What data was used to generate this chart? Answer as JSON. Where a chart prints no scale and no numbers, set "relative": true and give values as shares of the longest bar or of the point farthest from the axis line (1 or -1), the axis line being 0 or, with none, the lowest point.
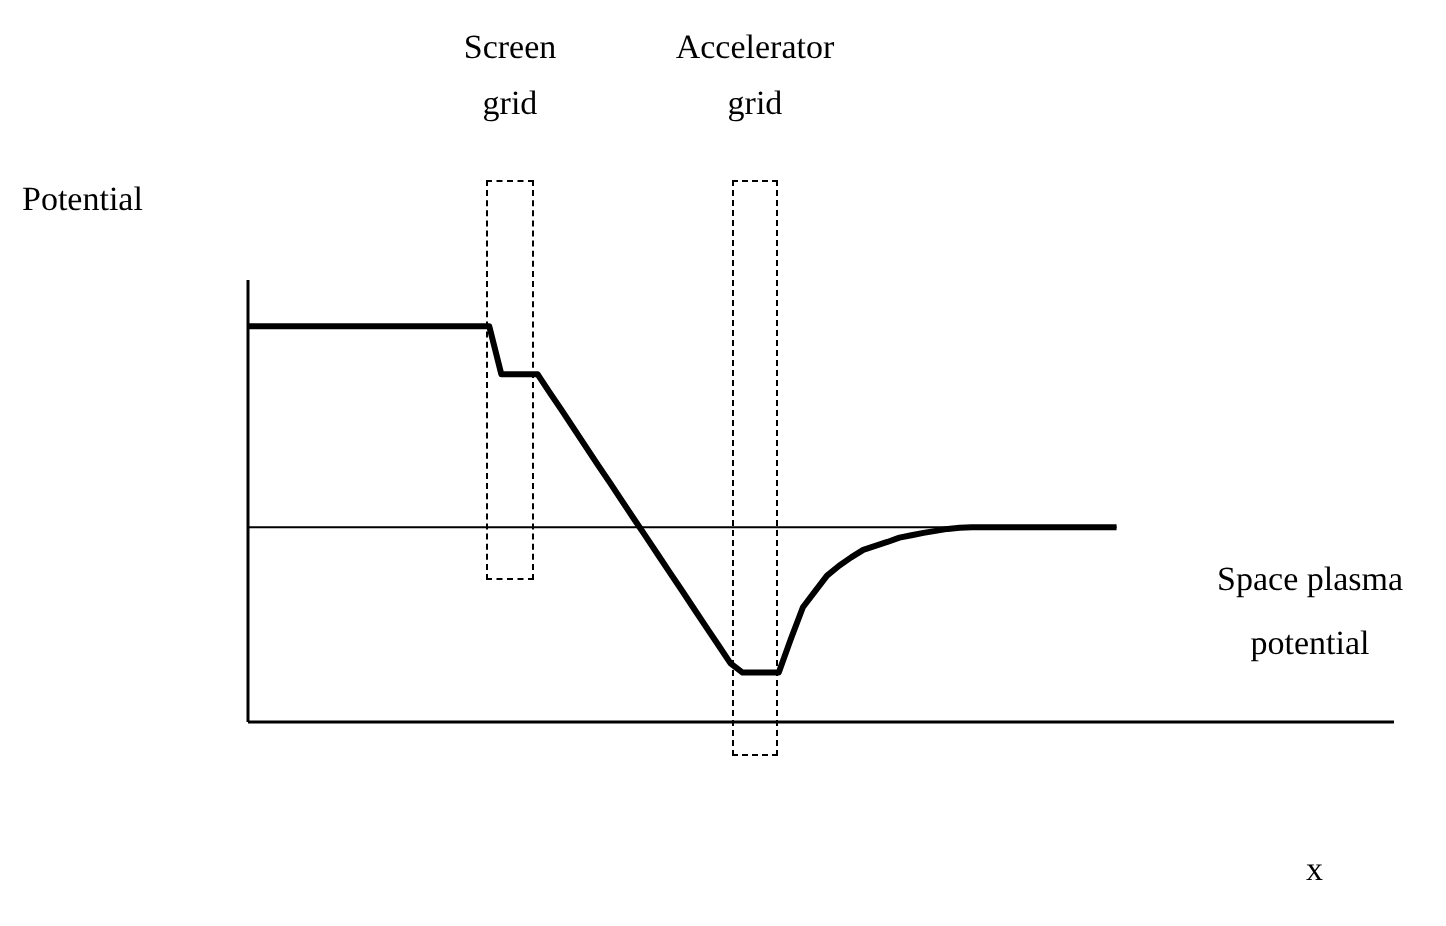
{
  "chart_data": {
    "type": "line",
    "relative": true,
    "ylabel": "Potential",
    "xlabel": "x",
    "marker": "none",
    "line_style": "solid",
    "categories": [
      null,
      null,
      null,
      null,
      null,
      null,
      null,
      null,
      null,
      null,
      null,
      null,
      null,
      null,
      null,
      null,
      null,
      null,
      null,
      null,
      null,
      null,
      null,
      null,
      null,
      null,
      null,
      null,
      null,
      null,
      null,
      null,
      null,
      null,
      null,
      null,
      null,
      null,
      null,
      null,
      null,
      null,
      null,
      null,
      null,
      null,
      null,
      null,
      null,
      null,
      null,
      null,
      null,
      null,
      null,
      null,
      null,
      null,
      null,
      null,
      null,
      null,
      null,
      null,
      null,
      null,
      null,
      null,
      null,
      null,
      null,
      null,
      null,
      null,
      null,
      null,
      null,
      null,
      null,
      null,
      null,
      null,
      null,
      null,
      null,
      null,
      null,
      null,
      null,
      null,
      null,
      null,
      null,
      null,
      null,
      null
    ],
    "series": [
      {
        "color": "#000000",
        "values": [
          1,
          1,
          1,
          1,
          1,
          1,
          1,
          1,
          1,
          1,
          1,
          1,
          1,
          1,
          1,
          1,
          1,
          1,
          1,
          1,
          1,
          0.879,
          0.879,
          0.879,
          0.879,
          0.833,
          0.788,
          0.742,
          0.696,
          0.65,
          0.605,
          0.559,
          0.513,
          0.468,
          0.422,
          0.376,
          0.331,
          0.285,
          0.239,
          0.194,
          0.148,
          0.125,
          0.125,
          0.125,
          0.125,
          0.21,
          0.29,
          0.33,
          0.37,
          0.395,
          0.416,
          0.435,
          0.445,
          0.455,
          0.466,
          0.472,
          0.478,
          0.483,
          0.488,
          0.491,
          0.492,
          0.492,
          0.492,
          0.492,
          0.492,
          0.492,
          0.492,
          0.492,
          0.492,
          0.492,
          0.492,
          0.492,
          0.492,
          null,
          null,
          null,
          null,
          null,
          null,
          null,
          null,
          null,
          null,
          null,
          null,
          null,
          null,
          null,
          null,
          null,
          null,
          null,
          null,
          null,
          null,
          null
        ]
      }
    ],
    "ref_lines": [
      {
        "axis": "y",
        "value": 0.492,
        "label": "Space plasma potential",
        "color": "#000000"
      }
    ],
    "annotations": [
      "Screen grid",
      "Accelerator grid"
    ]
  }
}
